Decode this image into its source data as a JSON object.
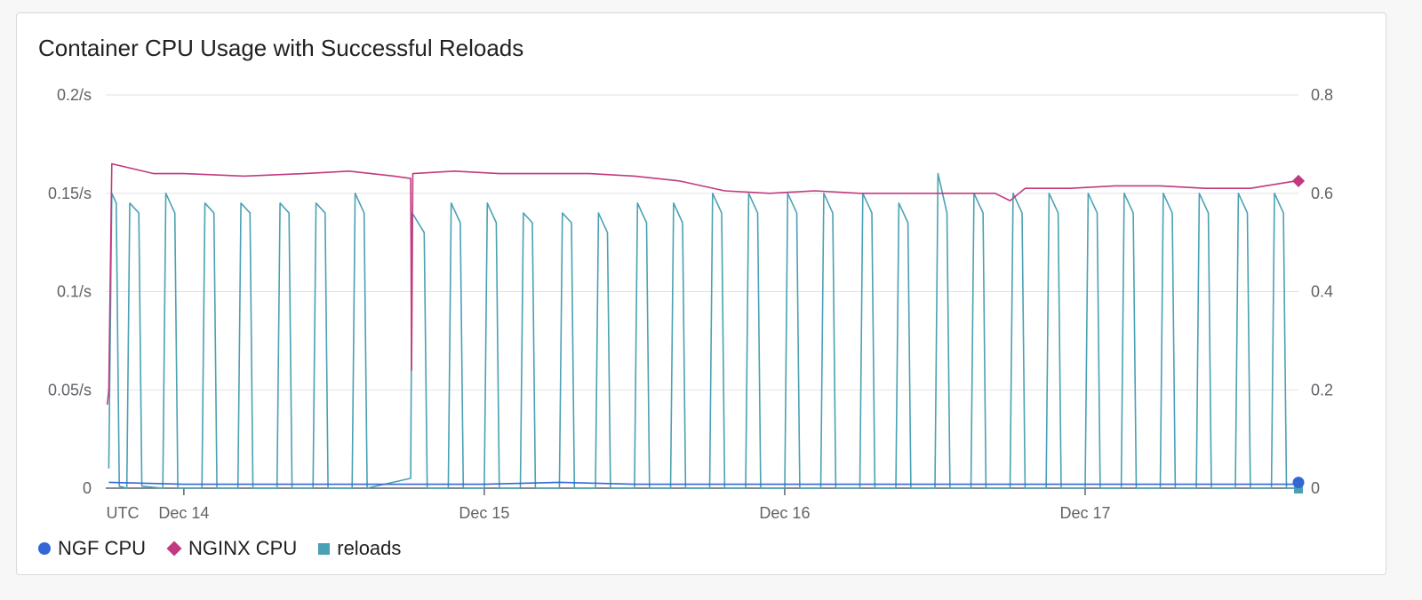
{
  "panel": {
    "title": "Container CPU Usage with Successful Reloads"
  },
  "chart_data": {
    "type": "line",
    "title": "Container CPU Usage with Successful Reloads",
    "x_labels": [
      "UTC",
      "Dec 14",
      "Dec 15",
      "Dec 16",
      "Dec 17"
    ],
    "x_ticks": [
      {
        "label": "Dec 14",
        "day": 14
      },
      {
        "label": "Dec 15",
        "day": 15
      },
      {
        "label": "Dec 16",
        "day": 16
      },
      {
        "label": "Dec 17",
        "day": 17
      }
    ],
    "x_range_days": [
      13.74,
      17.71
    ],
    "y_left": {
      "ticks": [
        "0",
        "0.05/s",
        "0.1/s",
        "0.15/s",
        "0.2/s"
      ],
      "values": [
        0,
        0.05,
        0.1,
        0.15,
        0.2
      ],
      "ylim": [
        0,
        0.2
      ]
    },
    "y_right": {
      "ticks": [
        "0",
        "0.2",
        "0.4",
        "0.6",
        "0.8"
      ],
      "values": [
        0,
        0.2,
        0.4,
        0.6,
        0.8
      ],
      "ylim": [
        0,
        0.8
      ]
    },
    "grid": true,
    "legend_position": "bottom-left",
    "series": [
      {
        "name": "NGF CPU",
        "axis": "left",
        "color": "#3367d6",
        "marker": "circle",
        "approx_value": 0.002,
        "points": [
          [
            13.75,
            0.003
          ],
          [
            14.0,
            0.002
          ],
          [
            14.25,
            0.002
          ],
          [
            14.5,
            0.002
          ],
          [
            14.75,
            0.002
          ],
          [
            15.0,
            0.002
          ],
          [
            15.25,
            0.003
          ],
          [
            15.5,
            0.002
          ],
          [
            15.75,
            0.002
          ],
          [
            16.0,
            0.002
          ],
          [
            16.25,
            0.002
          ],
          [
            16.5,
            0.002
          ],
          [
            16.75,
            0.002
          ],
          [
            17.0,
            0.002
          ],
          [
            17.25,
            0.002
          ],
          [
            17.5,
            0.002
          ],
          [
            17.7,
            0.002
          ]
        ]
      },
      {
        "name": "NGINX CPU",
        "axis": "right",
        "color": "#c2397f",
        "marker": "diamond",
        "points": [
          [
            13.745,
            0.17
          ],
          [
            13.75,
            0.2
          ],
          [
            13.76,
            0.66
          ],
          [
            13.9,
            0.64
          ],
          [
            14.0,
            0.64
          ],
          [
            14.2,
            0.635
          ],
          [
            14.4,
            0.64
          ],
          [
            14.55,
            0.645
          ],
          [
            14.7,
            0.635
          ],
          [
            14.755,
            0.63
          ],
          [
            14.758,
            0.24
          ],
          [
            14.762,
            0.64
          ],
          [
            14.9,
            0.645
          ],
          [
            15.05,
            0.64
          ],
          [
            15.2,
            0.64
          ],
          [
            15.35,
            0.64
          ],
          [
            15.5,
            0.635
          ],
          [
            15.65,
            0.625
          ],
          [
            15.8,
            0.605
          ],
          [
            15.95,
            0.6
          ],
          [
            16.1,
            0.605
          ],
          [
            16.25,
            0.6
          ],
          [
            16.4,
            0.6
          ],
          [
            16.55,
            0.6
          ],
          [
            16.7,
            0.6
          ],
          [
            16.75,
            0.585
          ],
          [
            16.8,
            0.61
          ],
          [
            16.95,
            0.61
          ],
          [
            17.1,
            0.615
          ],
          [
            17.25,
            0.615
          ],
          [
            17.4,
            0.61
          ],
          [
            17.55,
            0.61
          ],
          [
            17.7,
            0.625
          ]
        ]
      },
      {
        "name": "reloads",
        "axis": "left",
        "color": "#4aa1b3",
        "marker": "square",
        "peak_value": 0.147,
        "points": [
          [
            13.75,
            0.01
          ],
          [
            13.76,
            0.15
          ],
          [
            13.775,
            0.145
          ],
          [
            13.785,
            0.001
          ],
          [
            13.81,
            0.0
          ],
          [
            13.82,
            0.145
          ],
          [
            13.85,
            0.14
          ],
          [
            13.86,
            0.001
          ],
          [
            13.93,
            0.0
          ],
          [
            13.94,
            0.15
          ],
          [
            13.97,
            0.14
          ],
          [
            13.98,
            0.0
          ],
          [
            14.06,
            0.0
          ],
          [
            14.07,
            0.145
          ],
          [
            14.1,
            0.14
          ],
          [
            14.11,
            0.0
          ],
          [
            14.18,
            0.0
          ],
          [
            14.19,
            0.145
          ],
          [
            14.22,
            0.14
          ],
          [
            14.23,
            0.0
          ],
          [
            14.31,
            0.0
          ],
          [
            14.32,
            0.145
          ],
          [
            14.35,
            0.14
          ],
          [
            14.36,
            0.0
          ],
          [
            14.43,
            0.0
          ],
          [
            14.44,
            0.145
          ],
          [
            14.47,
            0.14
          ],
          [
            14.48,
            0.0
          ],
          [
            14.56,
            0.0
          ],
          [
            14.57,
            0.15
          ],
          [
            14.6,
            0.14
          ],
          [
            14.61,
            0.0
          ],
          [
            14.755,
            0.005
          ],
          [
            14.76,
            0.14
          ],
          [
            14.8,
            0.13
          ],
          [
            14.81,
            0.0
          ],
          [
            14.88,
            0.0
          ],
          [
            14.89,
            0.145
          ],
          [
            14.92,
            0.135
          ],
          [
            14.93,
            0.0
          ],
          [
            15.0,
            0.0
          ],
          [
            15.01,
            0.145
          ],
          [
            15.04,
            0.135
          ],
          [
            15.05,
            0.0
          ],
          [
            15.12,
            0.0
          ],
          [
            15.13,
            0.14
          ],
          [
            15.16,
            0.135
          ],
          [
            15.17,
            0.0
          ],
          [
            15.25,
            0.0
          ],
          [
            15.26,
            0.14
          ],
          [
            15.29,
            0.135
          ],
          [
            15.3,
            0.0
          ],
          [
            15.37,
            0.0
          ],
          [
            15.38,
            0.14
          ],
          [
            15.41,
            0.13
          ],
          [
            15.42,
            0.0
          ],
          [
            15.5,
            0.0
          ],
          [
            15.51,
            0.145
          ],
          [
            15.54,
            0.135
          ],
          [
            15.55,
            0.0
          ],
          [
            15.62,
            0.0
          ],
          [
            15.63,
            0.145
          ],
          [
            15.66,
            0.135
          ],
          [
            15.67,
            0.0
          ],
          [
            15.75,
            0.0
          ],
          [
            15.76,
            0.15
          ],
          [
            15.79,
            0.14
          ],
          [
            15.8,
            0.0
          ],
          [
            15.87,
            0.0
          ],
          [
            15.88,
            0.15
          ],
          [
            15.91,
            0.14
          ],
          [
            15.92,
            0.0
          ],
          [
            16.0,
            0.0
          ],
          [
            16.01,
            0.15
          ],
          [
            16.04,
            0.14
          ],
          [
            16.05,
            0.0
          ],
          [
            16.12,
            0.0
          ],
          [
            16.13,
            0.15
          ],
          [
            16.16,
            0.14
          ],
          [
            16.17,
            0.0
          ],
          [
            16.25,
            0.0
          ],
          [
            16.26,
            0.15
          ],
          [
            16.29,
            0.14
          ],
          [
            16.3,
            0.0
          ],
          [
            16.37,
            0.0
          ],
          [
            16.38,
            0.145
          ],
          [
            16.41,
            0.135
          ],
          [
            16.42,
            0.0
          ],
          [
            16.5,
            0.0
          ],
          [
            16.51,
            0.16
          ],
          [
            16.54,
            0.14
          ],
          [
            16.55,
            0.0
          ],
          [
            16.62,
            0.0
          ],
          [
            16.63,
            0.15
          ],
          [
            16.66,
            0.14
          ],
          [
            16.67,
            0.0
          ],
          [
            16.75,
            0.0
          ],
          [
            16.76,
            0.15
          ],
          [
            16.79,
            0.14
          ],
          [
            16.8,
            0.0
          ],
          [
            16.87,
            0.0
          ],
          [
            16.88,
            0.15
          ],
          [
            16.91,
            0.14
          ],
          [
            16.92,
            0.0
          ],
          [
            17.0,
            0.0
          ],
          [
            17.01,
            0.15
          ],
          [
            17.04,
            0.14
          ],
          [
            17.05,
            0.0
          ],
          [
            17.12,
            0.0
          ],
          [
            17.13,
            0.15
          ],
          [
            17.16,
            0.14
          ],
          [
            17.17,
            0.0
          ],
          [
            17.25,
            0.0
          ],
          [
            17.26,
            0.15
          ],
          [
            17.29,
            0.14
          ],
          [
            17.3,
            0.0
          ],
          [
            17.37,
            0.0
          ],
          [
            17.38,
            0.15
          ],
          [
            17.41,
            0.14
          ],
          [
            17.42,
            0.0
          ],
          [
            17.5,
            0.0
          ],
          [
            17.51,
            0.15
          ],
          [
            17.54,
            0.14
          ],
          [
            17.55,
            0.0
          ],
          [
            17.62,
            0.0
          ],
          [
            17.63,
            0.15
          ],
          [
            17.66,
            0.14
          ],
          [
            17.67,
            0.0
          ],
          [
            17.7,
            0.0
          ]
        ]
      }
    ]
  }
}
